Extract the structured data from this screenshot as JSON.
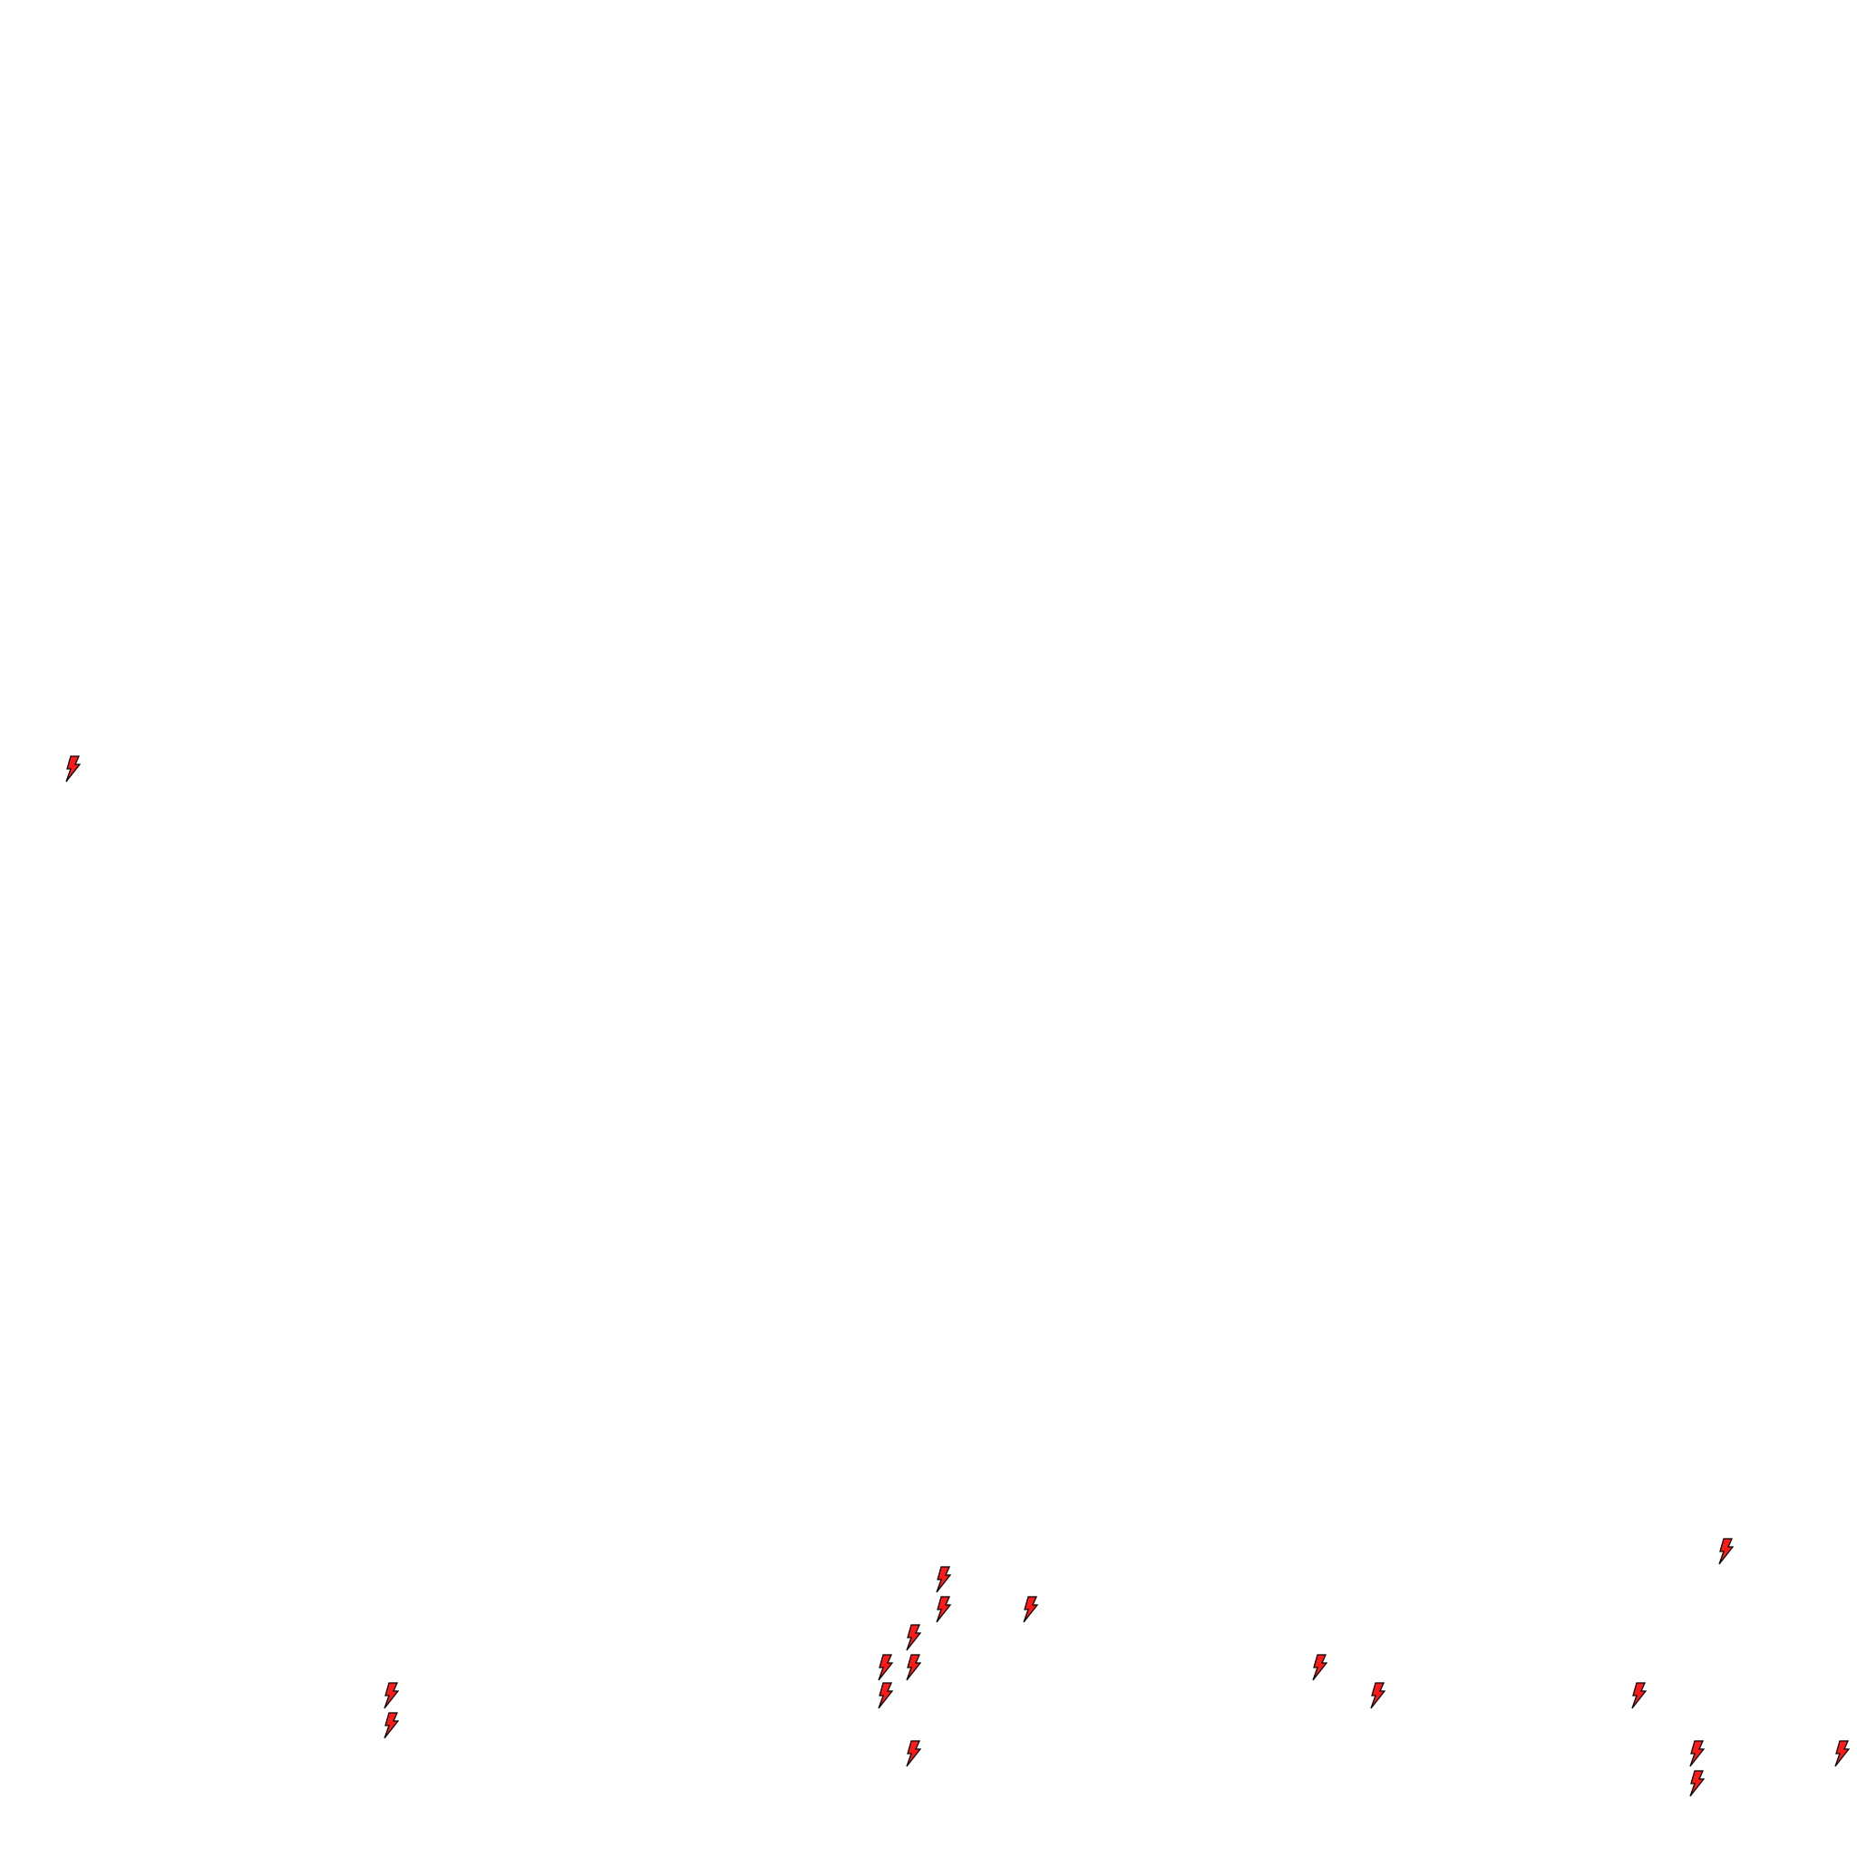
{
  "map": {
    "background_color": "#ffffff",
    "marker_icon": "lightning-bolt-icon",
    "marker_fill_color": "#ff1a1a",
    "marker_stroke_color": "#000000"
  }
}
